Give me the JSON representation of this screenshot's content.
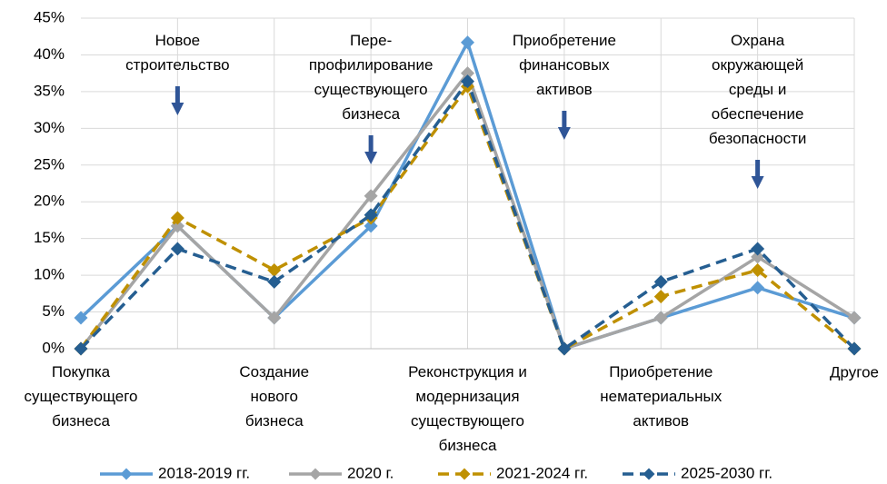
{
  "chart_data": {
    "type": "line",
    "categories": [
      "Покупка\nсуществующего\nбизнеса",
      "Новое\nстроительство",
      "Создание\nнового\nбизнеса",
      "Пере-\nпрофилирование\nсуществующего\nбизнеса",
      "Реконструкция и\nмодернизация\nсуществующего\nбизнеса",
      "Приобретение\nфинансовых\nактивов",
      "Приобретение\nнематериальных\nактивов",
      "Охрана\nокружающей\nсреды и\nобеспечение\nбезопасности",
      "Другое"
    ],
    "series": [
      {
        "name": "2018-2019 гг.",
        "color": "#5b9bd5",
        "dashed": false,
        "values": [
          4.2,
          16.7,
          4.2,
          16.7,
          41.7,
          0,
          4.2,
          8.3,
          4.2
        ]
      },
      {
        "name": "2020 г.",
        "color": "#a5a5a5",
        "dashed": false,
        "values": [
          0,
          16.7,
          4.2,
          20.8,
          37.5,
          0,
          4.2,
          12.5,
          4.2
        ]
      },
      {
        "name": "2021-2024 гг.",
        "color": "#bf9000",
        "dashed": true,
        "values": [
          0,
          17.8,
          10.7,
          17.8,
          35.7,
          0,
          7.1,
          10.7,
          0
        ]
      },
      {
        "name": "2025-2030 гг.",
        "color": "#255e91",
        "dashed": true,
        "values": [
          0,
          13.6,
          9.1,
          18.2,
          36.4,
          0,
          9.1,
          13.6,
          0
        ]
      }
    ],
    "ylim": [
      0,
      45
    ],
    "yticks": [
      {
        "value": 0,
        "label": "0%"
      },
      {
        "value": 5,
        "label": "5%"
      },
      {
        "value": 10,
        "label": "10%"
      },
      {
        "value": 15,
        "label": "15%"
      },
      {
        "value": 20,
        "label": "20%"
      },
      {
        "value": 25,
        "label": "25%"
      },
      {
        "value": 30,
        "label": "30%"
      },
      {
        "value": 35,
        "label": "35%"
      },
      {
        "value": 40,
        "label": "40%"
      },
      {
        "value": 45,
        "label": "45%"
      }
    ],
    "grid": true,
    "legend": "bottom"
  }
}
